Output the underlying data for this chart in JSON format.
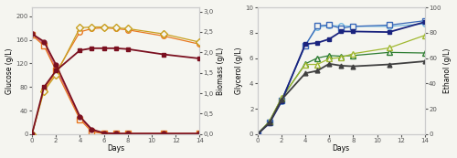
{
  "days": [
    0,
    1,
    2,
    4,
    5,
    6,
    7,
    8,
    11,
    14
  ],
  "glucose_control": [
    170,
    157,
    118,
    30,
    8,
    2,
    1,
    1,
    1,
    1
  ],
  "glucose_low": [
    170,
    153,
    112,
    28,
    6,
    1,
    1,
    1,
    1,
    1
  ],
  "glucose_high": [
    168,
    150,
    108,
    25,
    4,
    1,
    1,
    1,
    1,
    1
  ],
  "biomass_control": [
    0.0,
    1.15,
    1.55,
    2.05,
    2.1,
    2.1,
    2.1,
    2.08,
    1.95,
    1.85
  ],
  "biomass_low": [
    0.0,
    1.1,
    1.5,
    2.5,
    2.58,
    2.6,
    2.58,
    2.55,
    2.4,
    2.2
  ],
  "biomass_high": [
    0.0,
    1.05,
    1.45,
    2.6,
    2.62,
    2.62,
    2.6,
    2.58,
    2.45,
    2.25
  ],
  "glycerol_blue_ctrl": [
    0,
    0.85,
    2.55,
    7.1,
    7.2,
    7.5,
    8.1,
    8.1,
    8.05,
    8.85
  ],
  "glycerol_blue_low": [
    0,
    0.9,
    2.6,
    7.0,
    8.45,
    8.55,
    8.55,
    8.5,
    8.5,
    8.7
  ],
  "glycerol_blue_high": [
    0,
    0.95,
    2.65,
    7.0,
    8.55,
    8.6,
    8.35,
    8.5,
    8.6,
    8.95
  ],
  "glycerol_grn_ctrl": [
    0,
    0.9,
    2.7,
    4.8,
    5.0,
    5.55,
    5.4,
    5.35,
    5.5,
    5.75
  ],
  "glycerol_grn_low": [
    0,
    1.0,
    2.8,
    5.55,
    6.0,
    6.2,
    6.15,
    6.2,
    6.45,
    6.4
  ],
  "glycerol_grn_high": [
    0,
    1.0,
    2.85,
    5.5,
    5.5,
    5.95,
    6.05,
    6.35,
    6.8,
    7.8
  ],
  "color_darkred": "#7B1020",
  "color_pink": "#D4607A",
  "color_orange": "#E87820",
  "color_yellow": "#C8A020",
  "color_darkblue": "#1a237e",
  "color_lightblue": "#74b9e0",
  "color_medblue": "#3968b8",
  "color_darkgreen": "#2E7D32",
  "color_yellowgreen": "#A0B830",
  "color_black": "#404040",
  "bg_color": "#f5f5f0",
  "lw_bold": 1.3,
  "lw_thin": 0.9,
  "ms_filled": 3.5,
  "ms_open": 4.0
}
